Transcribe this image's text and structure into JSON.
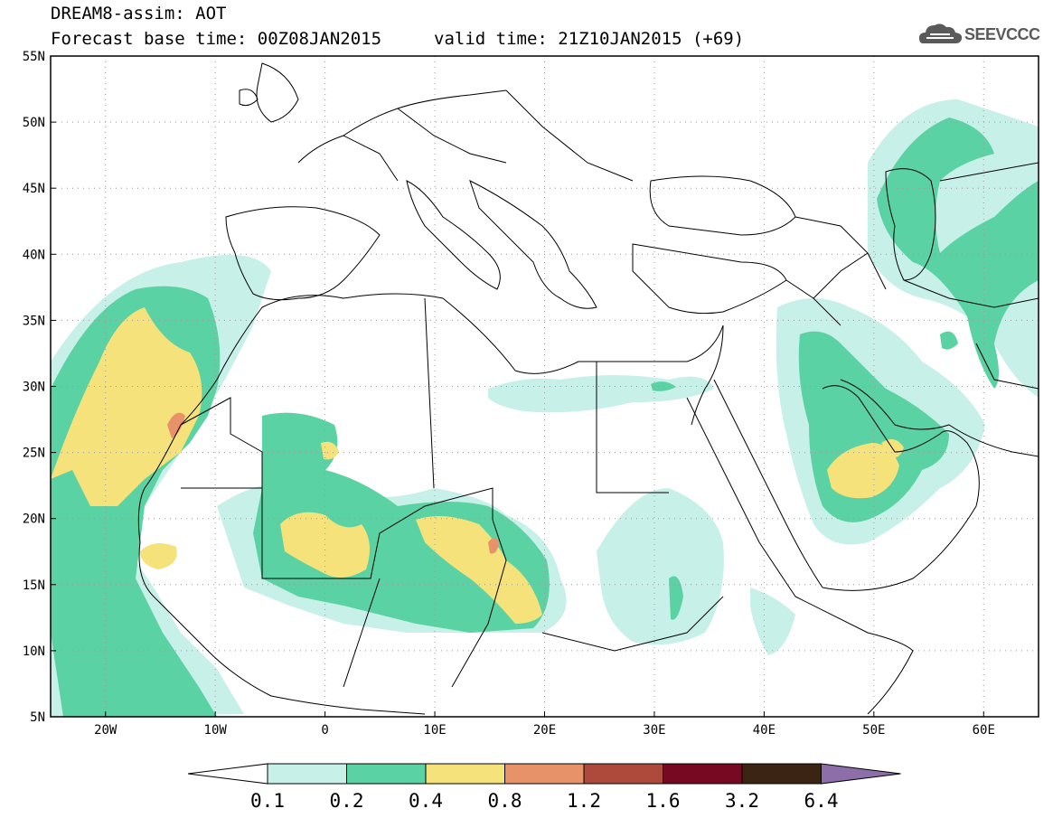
{
  "header": {
    "title": "DREAM8-assim: AOT",
    "base_time": "Forecast base time: 00Z08JAN2015",
    "valid_time": "valid time: 21Z10JAN2015 (+69)"
  },
  "logo": {
    "text": "SEEVCCC",
    "icon": "cloud-icon"
  },
  "map": {
    "lat_labels": [
      "55N",
      "50N",
      "45N",
      "40N",
      "35N",
      "30N",
      "25N",
      "20N",
      "15N",
      "10N",
      "5N"
    ],
    "lon_labels": [
      "20W",
      "10W",
      "0",
      "10E",
      "20E",
      "30E",
      "40E",
      "50E",
      "60E"
    ],
    "lat_range": [
      5,
      55
    ],
    "lon_range": [
      -25,
      65
    ],
    "grid": true
  },
  "colorbar": {
    "labels": [
      "0.1",
      "0.2",
      "0.4",
      "0.8",
      "1.2",
      "1.6",
      "3.2",
      "6.4"
    ],
    "colors": [
      "#ffffff",
      "#c6f0e8",
      "#5bd2a3",
      "#f5e27a",
      "#e8926a",
      "#ad4a3c",
      "#770a22",
      "#3b2414",
      "#8d6ea9"
    ]
  }
}
